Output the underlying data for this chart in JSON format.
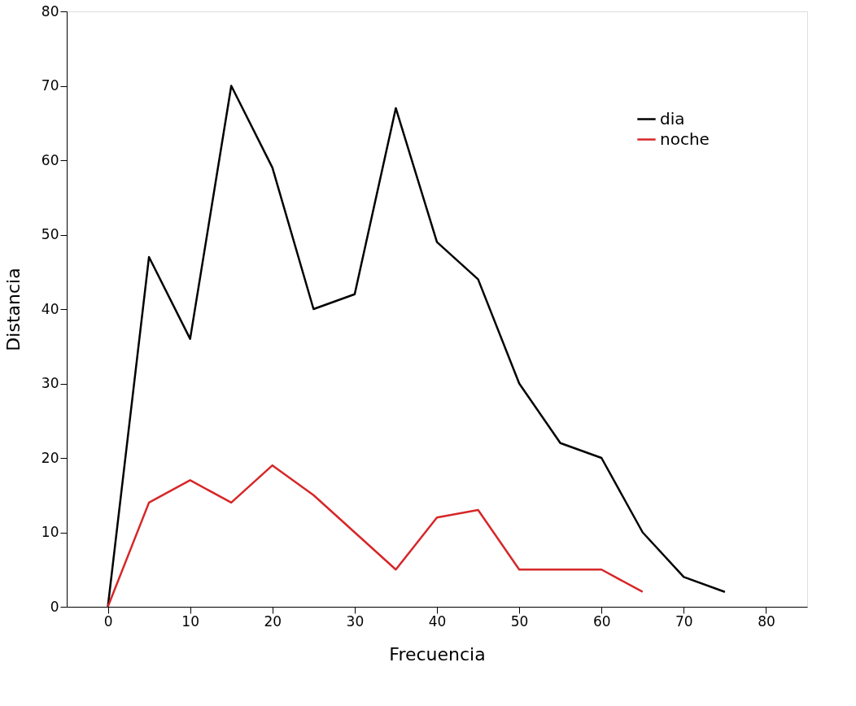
{
  "chart_data": {
    "type": "line",
    "xlabel": "Frecuencia",
    "ylabel": "Distancia",
    "x": [
      0,
      5,
      10,
      15,
      20,
      25,
      30,
      35,
      40,
      45,
      50,
      55,
      60,
      65,
      70,
      75
    ],
    "series": [
      {
        "name": "dia",
        "color": "#000000",
        "values": [
          0,
          47,
          36,
          70,
          59,
          40,
          42,
          67,
          49,
          44,
          30,
          22,
          20,
          10,
          4,
          2
        ]
      },
      {
        "name": "noche",
        "color": "#d62728",
        "x": [
          0,
          5,
          10,
          15,
          20,
          25,
          30,
          35,
          40,
          45,
          50,
          55,
          60,
          65
        ],
        "values": [
          0,
          14,
          17,
          14,
          19,
          15,
          10,
          5,
          12,
          13,
          5,
          5,
          5,
          2
        ]
      }
    ],
    "xlim": [
      -5,
      85
    ],
    "ylim": [
      0,
      80
    ],
    "xticks": [
      0,
      10,
      20,
      30,
      40,
      50,
      60,
      70,
      80
    ],
    "yticks": [
      0,
      10,
      20,
      30,
      40,
      50,
      60,
      70,
      80
    ],
    "grid": false,
    "legend": "top right",
    "marker": "none",
    "line_style": "solid"
  }
}
